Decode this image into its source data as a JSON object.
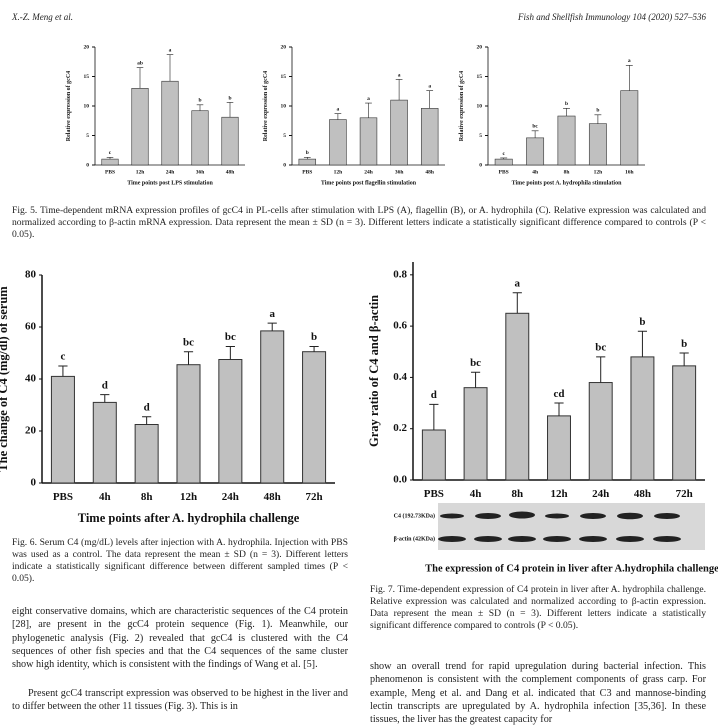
{
  "header": {
    "authors": "X.-Z. Meng et al.",
    "journal": "Fish and Shellfish Immunology 104 (2020) 527–536"
  },
  "chart_data": [
    {
      "type": "bar",
      "ylabel": "Relative expression of gcC4",
      "xlabel": "Time points post LPS stimulation",
      "categories": [
        "PBS",
        "12h",
        "24h",
        "36h",
        "48h"
      ],
      "values": [
        1,
        13,
        14.2,
        9.2,
        8.1
      ],
      "errors": [
        0.3,
        3.5,
        4.5,
        1,
        2.5
      ],
      "letters": [
        "c",
        "ab",
        "a",
        "b",
        "b"
      ],
      "color": "#c0c0c0",
      "ylim": [
        0,
        20
      ],
      "yticks": [
        0,
        5,
        10,
        15,
        20
      ]
    },
    {
      "type": "bar",
      "ylabel": "Relative expression of gcC4",
      "xlabel": "Time points post flagellin stimulation",
      "categories": [
        "PBS",
        "12h",
        "24h",
        "36h",
        "48h"
      ],
      "values": [
        1,
        7.7,
        8,
        11,
        9.6
      ],
      "errors": [
        0.3,
        1,
        2.5,
        3.5,
        3
      ],
      "letters": [
        "b",
        "a",
        "a",
        "a",
        "a"
      ],
      "color": "#c0c0c0",
      "ylim": [
        0,
        20
      ],
      "yticks": [
        0,
        5,
        10,
        15,
        20
      ]
    },
    {
      "type": "bar",
      "ylabel": "Relative expression of gcC4",
      "xlabel": "Time points post A. hydrophila stimulation",
      "categories": [
        "PBS",
        "4h",
        "8h",
        "12h",
        "16h"
      ],
      "values": [
        1,
        4.6,
        8.3,
        7,
        12.6
      ],
      "errors": [
        0.2,
        1.2,
        1.3,
        1.5,
        4.3
      ],
      "letters": [
        "c",
        "bc",
        "b",
        "b",
        "a"
      ],
      "color": "#c0c0c0",
      "ylim": [
        0,
        20
      ],
      "yticks": [
        0,
        5,
        10,
        15,
        20
      ]
    },
    {
      "type": "bar",
      "ylabel": "The change of C4 (mg/dl) of serum",
      "xlabel": "Time points after A. hydrophila challenge",
      "categories": [
        "PBS",
        "4h",
        "8h",
        "12h",
        "24h",
        "48h",
        "72h"
      ],
      "values": [
        41,
        31,
        22.5,
        45.5,
        47.5,
        58.5,
        50.5
      ],
      "errors": [
        4,
        3,
        3,
        5,
        5,
        3,
        2
      ],
      "letters": [
        "c",
        "d",
        "d",
        "bc",
        "bc",
        "a",
        "b"
      ],
      "color": "#c0c0c0",
      "ylim": [
        0,
        80
      ],
      "yticks": [
        0,
        20,
        40,
        60,
        80
      ]
    },
    {
      "type": "bar",
      "ylabel": "Gray ratio of C4 and β-actin",
      "xlabel": "The expression of C4 protein in liver after A.hydrophila challenge",
      "categories": [
        "PBS",
        "4h",
        "8h",
        "12h",
        "24h",
        "48h",
        "72h"
      ],
      "values": [
        0.195,
        0.36,
        0.65,
        0.25,
        0.38,
        0.48,
        0.445
      ],
      "errors": [
        0.1,
        0.06,
        0.08,
        0.05,
        0.1,
        0.1,
        0.05
      ],
      "letters": [
        "d",
        "bc",
        "a",
        "cd",
        "bc",
        "b",
        "b"
      ],
      "color": "#c0c0c0",
      "ylim": [
        0,
        0.85
      ],
      "yticks": [
        {
          "value": 0,
          "label": "0.0"
        },
        0.2,
        0.4,
        0.6,
        0.8
      ],
      "blot_labels": [
        "C4 (192.73KDa)",
        "β-actin (42KDa)"
      ]
    }
  ],
  "captions": {
    "fig5": "Fig. 5. Time-dependent mRNA expression profiles of gcC4 in PL-cells after stimulation with LPS (A), flagellin (B), or A. hydrophila (C). Relative expression was calculated and normalized according to β-actin mRNA expression. Data represent the mean ± SD (n = 3). Different letters indicate a statistically significant difference compared to controls (P < 0.05).",
    "fig6": "Fig. 6. Serum C4 (mg/dL) levels after injection with A. hydrophila. Injection with PBS was used as a control. The data represent the mean ± SD (n = 3). Different letters indicate a statistically significant difference between different sampled times (P < 0.05).",
    "fig7": "Fig. 7. Time-dependent expression of C4 protein in liver after A. hydrophila challenge. Relative expression was calculated and normalized according to β-actin expression. Data represent the mean ± SD (n = 3). Different letters indicate a statistically significant difference compared to controls (P < 0.05)."
  },
  "body": {
    "left": [
      "eight conservative domains, which are characteristic sequences of the C4 protein [28], are present in the gcC4 protein sequence (Fig. 1). Meanwhile, our phylogenetic analysis (Fig. 2) revealed that gcC4 is clustered with the C4 sequences of other fish species and that the C4 sequences of the same cluster show high identity, which is consistent with the findings of Wang et al. [5].",
      "Present gcC4 transcript expression was observed to be highest in the liver and to differ between the other 11 tissues (Fig. 3). This is in"
    ],
    "right": [
      "show an overall trend for rapid upregulation during bacterial infection. This phenomenon is consistent with the complement components of grass carp. For example, Meng et al. and Dang et al. indicated that C3 and mannose-binding lectin transcripts are upregulated by A. hydrophila infection [35,36]. In these tissues, the liver has the greatest capacity for"
    ]
  }
}
